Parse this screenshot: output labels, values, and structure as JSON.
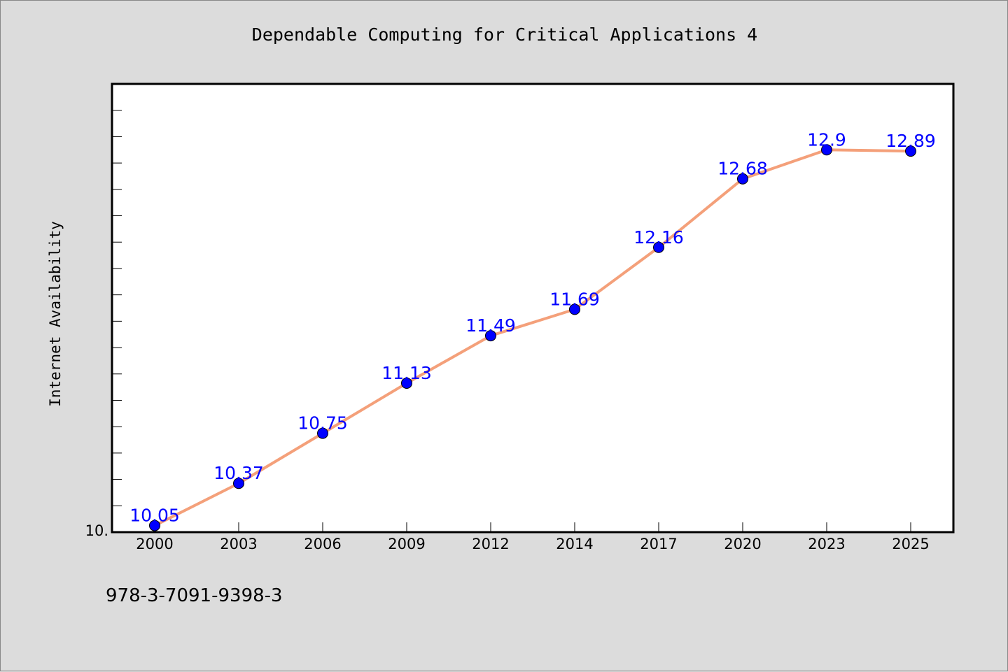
{
  "footer_text": "978-3-7091-9398-3",
  "chart_data": {
    "type": "line",
    "title": "Dependable Computing for Critical Applications 4",
    "xlabel": "",
    "ylabel": "Internet Availability",
    "categories": [
      "2000",
      "2003",
      "2006",
      "2009",
      "2012",
      "2014",
      "2017",
      "2020",
      "2023",
      "2025"
    ],
    "series": [
      {
        "values": [
          10.05,
          10.37,
          10.75,
          11.13,
          11.49,
          11.69,
          12.16,
          12.68,
          12.9,
          12.89
        ]
      }
    ],
    "y_tick_labels": [
      "10."
    ],
    "ylim": [
      10.0,
      13.4
    ],
    "grid": false,
    "line_color": "#f4a07a",
    "marker_color": "#0000ff",
    "label_color": "#0000ff"
  }
}
